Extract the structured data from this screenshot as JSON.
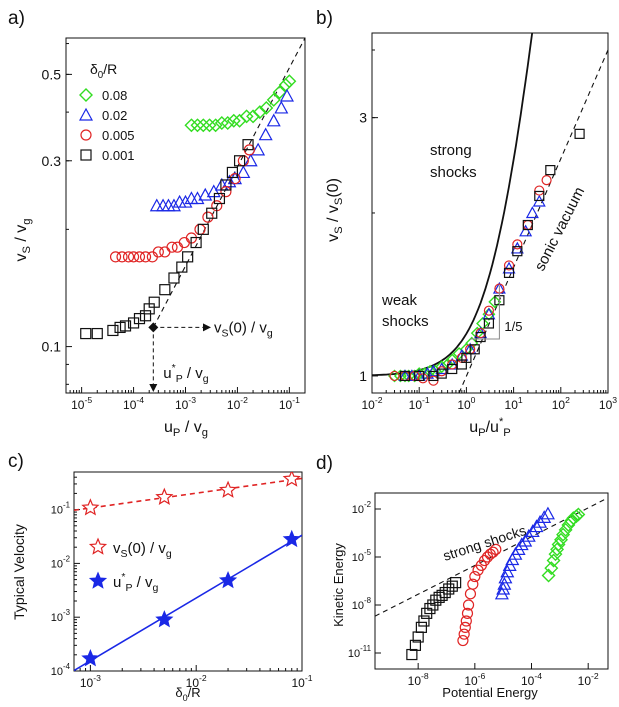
{
  "colors": {
    "green": "#33dd22",
    "blue": "#1a28e6",
    "red": "#e02424",
    "black": "#111111",
    "star_red": "#e02424",
    "star_blue": "#1a28e6"
  },
  "chart_data": [
    {
      "panel": "a)",
      "type": "scatter",
      "xscale": "log",
      "yscale": "log",
      "xlim": [
        5e-06,
        0.2
      ],
      "ylim": [
        0.076,
        0.62
      ],
      "xticks": [
        1e-05,
        0.0001,
        0.001,
        0.01,
        0.1
      ],
      "xticklabels": [
        [
          "10",
          "-5"
        ],
        [
          "10",
          "-4"
        ],
        [
          "10",
          "-3"
        ],
        [
          "10",
          "-2"
        ],
        [
          "10",
          "-1"
        ]
      ],
      "yticks": [
        0.1,
        0.3,
        0.5
      ],
      "yticklabels": [
        "0.1",
        "0.3",
        "0.5"
      ],
      "xlabel": "u_P / v_g",
      "ylabel": "v_S / v_g",
      "legend_title": "δ_0/R",
      "series": [
        {
          "name": "0.08",
          "marker": "diamond",
          "color": "#33dd22",
          "x": [
            0.0013,
            0.0017,
            0.0022,
            0.0029,
            0.0038,
            0.005,
            0.0065,
            0.0085,
            0.011,
            0.015,
            0.02,
            0.027,
            0.036,
            0.05,
            0.065,
            0.085,
            0.1
          ],
          "y": [
            0.37,
            0.37,
            0.37,
            0.37,
            0.37,
            0.375,
            0.375,
            0.38,
            0.38,
            0.39,
            0.39,
            0.4,
            0.41,
            0.43,
            0.45,
            0.47,
            0.48
          ]
        },
        {
          "name": "0.02",
          "marker": "triangle",
          "color": "#1a28e6",
          "x": [
            0.00028,
            0.00037,
            0.00047,
            0.0006,
            0.00077,
            0.001,
            0.0013,
            0.0017,
            0.0024,
            0.0035,
            0.005,
            0.007,
            0.009,
            0.013,
            0.018,
            0.025,
            0.035,
            0.05,
            0.07,
            0.09
          ],
          "y": [
            0.23,
            0.23,
            0.23,
            0.23,
            0.235,
            0.235,
            0.24,
            0.24,
            0.245,
            0.25,
            0.26,
            0.265,
            0.27,
            0.28,
            0.3,
            0.32,
            0.35,
            0.38,
            0.41,
            0.44
          ]
        },
        {
          "name": "0.005",
          "marker": "circle",
          "color": "#e02424",
          "x": [
            4.5e-05,
            6e-05,
            8e-05,
            0.0001,
            0.00013,
            0.00017,
            0.00023,
            0.0003,
            0.0004,
            0.00055,
            0.0007,
            0.00095,
            0.0013,
            0.0019,
            0.0027,
            0.004,
            0.006,
            0.009,
            0.013,
            0.017
          ],
          "y": [
            0.17,
            0.17,
            0.17,
            0.17,
            0.17,
            0.17,
            0.17,
            0.175,
            0.175,
            0.18,
            0.18,
            0.185,
            0.19,
            0.2,
            0.215,
            0.23,
            0.25,
            0.27,
            0.3,
            0.32
          ]
        },
        {
          "name": "0.001",
          "marker": "square",
          "color": "#111111",
          "x": [
            1.2e-05,
            2e-05,
            4e-05,
            5.5e-05,
            7e-05,
            0.0001,
            0.00013,
            0.00017,
            0.0002,
            0.00025,
            0.0004,
            0.0006,
            0.00085,
            0.0011,
            0.0016,
            0.0022,
            0.0032,
            0.0045,
            0.006,
            0.008,
            0.011,
            0.016
          ],
          "y": [
            0.108,
            0.108,
            0.11,
            0.112,
            0.113,
            0.115,
            0.118,
            0.12,
            0.125,
            0.13,
            0.14,
            0.15,
            0.16,
            0.17,
            0.185,
            0.2,
            0.22,
            0.24,
            0.26,
            0.28,
            0.3,
            0.33
          ]
        }
      ],
      "dashed_line": {
        "x": [
          0.00024,
          0.2
        ],
        "y": [
          0.112,
          0.62
        ]
      },
      "annotations": {
        "vs0": [
          "v",
          "S",
          "(0) / v",
          "g"
        ],
        "up": [
          "u",
          "P",
          "*",
          "/ v",
          "g"
        ],
        "point": [
          0.00024,
          0.112
        ]
      }
    },
    {
      "panel": "b)",
      "type": "scatter",
      "xscale": "log",
      "yscale": "log",
      "xlim": [
        0.01,
        1000
      ],
      "ylim": [
        0.93,
        4.3
      ],
      "xticks": [
        0.01,
        0.1,
        1,
        10,
        100,
        1000
      ],
      "xticklabels": [
        [
          "10",
          "-2"
        ],
        [
          "10",
          "-1"
        ],
        [
          "10",
          "0"
        ],
        [
          "10",
          "1"
        ],
        [
          "10",
          "2"
        ],
        [
          "10",
          "3"
        ]
      ],
      "yticks": [
        1,
        3
      ],
      "yticklabels": [
        "1",
        "3"
      ],
      "xlabel": "u_P/u*_P",
      "ylabel": "v_S / v_S(0)",
      "solid_curve": "v = 1 + 0.2 (u/u*)^0.9 smooth fit",
      "dashed_line": {
        "x": [
          0.7,
          1000
        ],
        "y": [
          0.93,
          4.0
        ]
      },
      "slope_label": "1/5",
      "labels": {
        "strong": "strong\nshocks",
        "weak": "weak\nshocks",
        "sonic": "sonic vacuum"
      },
      "series": [
        {
          "name": "0.08",
          "marker": "diamond",
          "color": "#33dd22",
          "x": [
            0.03,
            0.04,
            0.05,
            0.06,
            0.08,
            0.1,
            0.13,
            0.17,
            0.22,
            0.3,
            0.4,
            0.5,
            0.7,
            1,
            1.3,
            1.7,
            2.2,
            3,
            4
          ],
          "y": [
            1.0,
            1.0,
            1.0,
            1.0,
            1.0,
            1.01,
            1.01,
            1.02,
            1.02,
            1.04,
            1.05,
            1.07,
            1.1,
            1.12,
            1.15,
            1.2,
            1.25,
            1.3,
            1.37
          ]
        },
        {
          "name": "0.02",
          "marker": "triangle",
          "color": "#1a28e6",
          "x": [
            0.05,
            0.07,
            0.1,
            0.15,
            0.2,
            0.3,
            0.5,
            0.8,
            1.2,
            2,
            3,
            5,
            8,
            12,
            18,
            25,
            35
          ],
          "y": [
            1.0,
            1.0,
            1.0,
            1.01,
            1.02,
            1.03,
            1.05,
            1.09,
            1.12,
            1.2,
            1.3,
            1.45,
            1.58,
            1.72,
            1.85,
            2.0,
            2.1
          ]
        },
        {
          "name": "0.005",
          "marker": "circle",
          "color": "#e02424",
          "x": [
            0.03,
            0.05,
            0.08,
            0.12,
            0.2,
            0.3,
            0.5,
            0.8,
            1.2,
            2,
            3,
            5,
            8,
            12,
            20,
            35,
            50
          ],
          "y": [
            1.0,
            1.0,
            1.0,
            0.99,
            0.98,
            1.02,
            1.05,
            1.08,
            1.12,
            1.2,
            1.32,
            1.45,
            1.6,
            1.75,
            1.9,
            2.2,
            2.3
          ]
        },
        {
          "name": "0.001",
          "marker": "square",
          "color": "#111111",
          "x": [
            0.05,
            0.1,
            0.2,
            0.3,
            0.5,
            0.8,
            1,
            1.5,
            2,
            3,
            5,
            8,
            12,
            20,
            35,
            60,
            250
          ],
          "y": [
            1.0,
            1.0,
            1.0,
            1.01,
            1.03,
            1.05,
            1.08,
            1.12,
            1.18,
            1.25,
            1.38,
            1.55,
            1.7,
            1.9,
            2.15,
            2.4,
            2.8
          ]
        }
      ]
    },
    {
      "panel": "c)",
      "type": "line",
      "xscale": "log",
      "yscale": "log",
      "xlim": [
        0.0007,
        0.1
      ],
      "ylim": [
        0.0001,
        0.5
      ],
      "xticks": [
        0.001,
        0.01,
        0.1
      ],
      "xticklabels": [
        [
          "10",
          "-3"
        ],
        [
          "10",
          "-2"
        ],
        [
          "10",
          "-1"
        ]
      ],
      "yticks": [
        0.0001,
        0.001,
        0.01,
        0.1
      ],
      "yticklabels": [
        [
          "10",
          "-4"
        ],
        [
          "10",
          "-3"
        ],
        [
          "10",
          "-2"
        ],
        [
          "10",
          "-1"
        ]
      ],
      "xlabel": "δ_0/R",
      "ylabel": "Typical Velocity",
      "series": [
        {
          "name": "vS0",
          "label": [
            "v",
            "S",
            "(0) / v",
            "g"
          ],
          "marker": "open-star",
          "color": "#e02424",
          "line": "dashed",
          "x": [
            0.001,
            0.005,
            0.02,
            0.08
          ],
          "y": [
            0.108,
            0.17,
            0.23,
            0.37
          ]
        },
        {
          "name": "up",
          "label": [
            "u",
            "P",
            "*",
            "/ v",
            "g"
          ],
          "marker": "filled-star",
          "color": "#1a28e6",
          "line": "solid",
          "x": [
            0.001,
            0.005,
            0.02,
            0.08
          ],
          "y": [
            0.00017,
            0.0009,
            0.0048,
            0.028
          ]
        }
      ]
    },
    {
      "panel": "d)",
      "type": "scatter",
      "xscale": "log",
      "yscale": "log",
      "xlim": [
        3e-10,
        0.05
      ],
      "ylim": [
        1e-12,
        0.1
      ],
      "xticks": [
        1e-08,
        1e-06,
        0.0001,
        0.01
      ],
      "xticklabels": [
        [
          "10",
          "-8"
        ],
        [
          "10",
          "-6"
        ],
        [
          "10",
          "-4"
        ],
        [
          "10",
          "-2"
        ]
      ],
      "yticks": [
        1e-11,
        1e-08,
        1e-05,
        0.01
      ],
      "yticklabels": [
        [
          "10",
          "-11"
        ],
        [
          "10",
          "-8"
        ],
        [
          "10",
          "-5"
        ],
        [
          "10",
          "-2"
        ]
      ],
      "xlabel": "Potential Energy",
      "ylabel": "Kinetic Energy",
      "annotation": "strong shocks",
      "dashed_line": {
        "x": [
          3e-10,
          0.05
        ],
        "y": [
          2e-09,
          0.05
        ]
      },
      "series": [
        {
          "name": "0.001",
          "marker": "square",
          "color": "#111111",
          "x": [
            6e-09,
            8e-09,
            1e-08,
            1.3e-08,
            1.6e-08,
            2e-08,
            2.6e-08,
            3.3e-08,
            4.2e-08,
            5.5e-08,
            7e-08,
            9e-08,
            1.2e-07,
            1.6e-07,
            2.1e-07
          ],
          "y": [
            8e-12,
            3e-11,
            1e-10,
            4e-10,
            1e-09,
            3e-09,
            6e-09,
            1e-08,
            2e-08,
            3e-08,
            4e-08,
            6e-08,
            1e-07,
            1.5e-07,
            2.5e-07
          ]
        },
        {
          "name": "0.005",
          "marker": "circle",
          "color": "#e02424",
          "x": [
            3.8e-07,
            4.2e-07,
            4.6e-07,
            5e-07,
            5.5e-07,
            6e-07,
            7e-07,
            8.5e-07,
            1e-06,
            1.3e-06,
            1.7e-06,
            2.2e-06,
            2.8e-06,
            3.5e-06,
            4.4e-06,
            5.5e-06
          ],
          "y": [
            6e-11,
            1.5e-10,
            4e-10,
            1e-09,
            3e-09,
            1e-08,
            5e-08,
            2e-07,
            6e-07,
            1.5e-06,
            3e-06,
            6e-06,
            1e-05,
            1.5e-05,
            2e-05,
            3e-05
          ]
        },
        {
          "name": "0.02",
          "marker": "triangle",
          "color": "#1a28e6",
          "x": [
            9e-06,
            1e-05,
            1.1e-05,
            1.2e-05,
            1.4e-05,
            1.7e-05,
            2.1e-05,
            2.7e-05,
            3.5e-05,
            4.5e-05,
            6e-05,
            8e-05,
            0.00011,
            0.00015,
            0.0002,
            0.00028,
            0.00038
          ],
          "y": [
            5e-08,
            1e-07,
            2e-07,
            5e-07,
            1.2e-06,
            3e-06,
            7e-06,
            1.5e-05,
            3e-05,
            6e-05,
            0.0001,
            0.0002,
            0.0004,
            0.0008,
            0.0015,
            0.003,
            0.005
          ]
        },
        {
          "name": "0.08",
          "marker": "diamond",
          "color": "#33dd22",
          "x": [
            0.0004,
            0.0005,
            0.0006,
            0.0007,
            0.0008,
            0.0009,
            0.0011,
            0.0013,
            0.0016,
            0.002,
            0.0025,
            0.003,
            0.0038,
            0.0045
          ],
          "y": [
            7e-07,
            2e-06,
            6e-06,
            1.5e-05,
            3e-05,
            6e-05,
            0.00012,
            0.00025,
            0.0005,
            0.001,
            0.0018,
            0.0027,
            0.0035,
            0.0045
          ]
        }
      ]
    }
  ]
}
